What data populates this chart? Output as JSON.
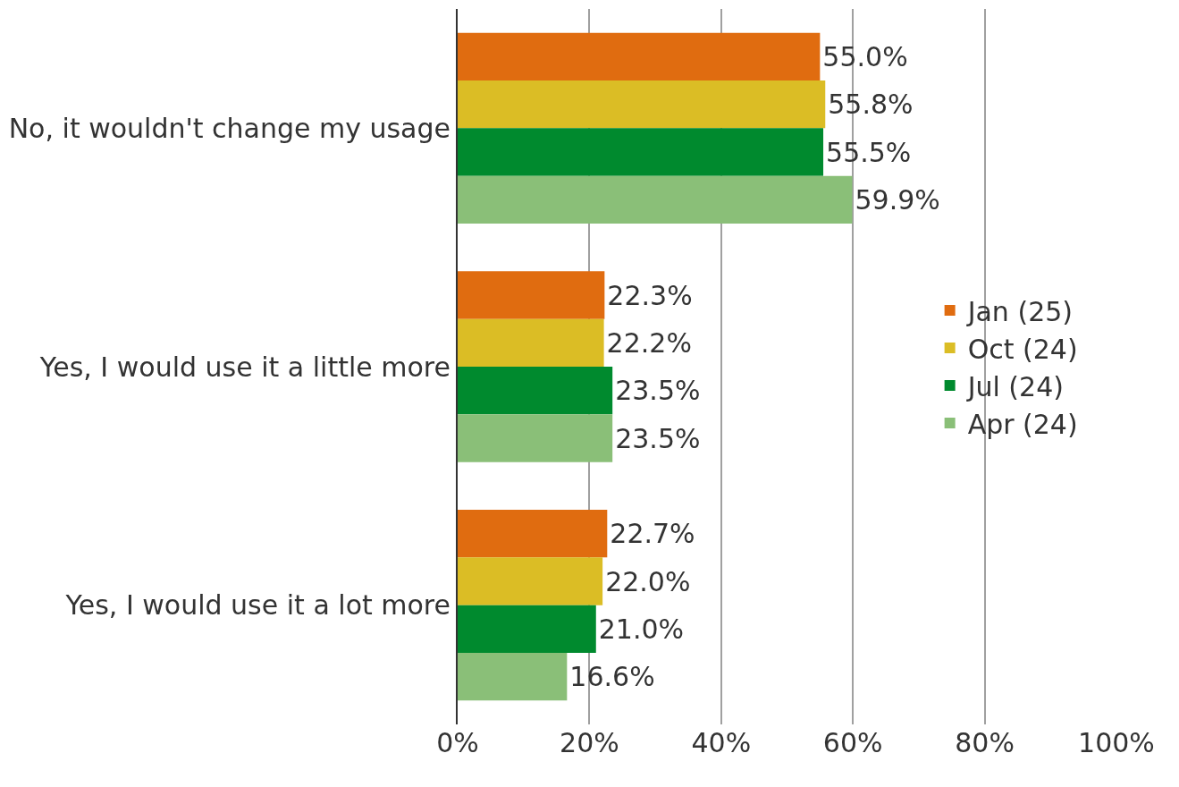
{
  "chart_data": {
    "type": "bar",
    "orientation": "horizontal",
    "categories": [
      "No, it wouldn't change my usage",
      "Yes, I would use it a little more",
      "Yes, I would use it a lot more"
    ],
    "series": [
      {
        "name": "Jan (25)",
        "color": "#e06c10",
        "values": [
          55.0,
          22.3,
          22.7
        ],
        "value_labels": [
          "55.0%",
          "22.3%",
          "22.7%"
        ]
      },
      {
        "name": "Oct (24)",
        "color": "#dbbd25",
        "values": [
          55.8,
          22.2,
          22.0
        ],
        "value_labels": [
          "55.8%",
          "22.2%",
          "22.0%"
        ]
      },
      {
        "name": "Jul (24)",
        "color": "#008a2e",
        "values": [
          55.5,
          23.5,
          21.0
        ],
        "value_labels": [
          "55.5%",
          "23.5%",
          "21.0%"
        ]
      },
      {
        "name": "Apr (24)",
        "color": "#8abf78",
        "values": [
          59.9,
          23.5,
          16.6
        ],
        "value_labels": [
          "59.9%",
          "23.5%",
          "16.6%"
        ]
      }
    ],
    "xlim": [
      0,
      100
    ],
    "xticks": [
      {
        "value": 0,
        "label": "0%"
      },
      {
        "value": 20,
        "label": "20%"
      },
      {
        "value": 40,
        "label": "40%"
      },
      {
        "value": 60,
        "label": "60%"
      },
      {
        "value": 80,
        "label": "80%"
      },
      {
        "value": 100,
        "label": "100%"
      }
    ],
    "grid": "x",
    "legend": "right"
  }
}
